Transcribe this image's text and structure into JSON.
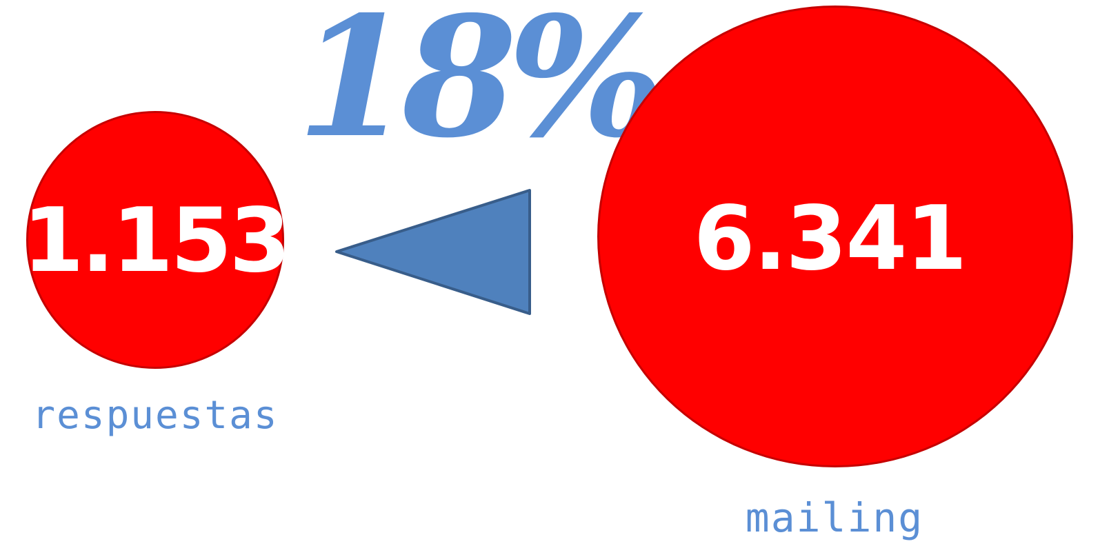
{
  "diagram": {
    "percentage": "18%",
    "left_value": "1.153",
    "left_label": "respuestas",
    "right_value": "6.341",
    "right_label": "mailing",
    "arrow_direction": "left",
    "colors": {
      "circle_fill": "#ff0000",
      "circle_stroke": "#c60000",
      "number_text": "#ffffff",
      "label_text": "#5b8fd5",
      "arrow_fill": "#4f81bd",
      "arrow_stroke": "#385d8a"
    }
  }
}
